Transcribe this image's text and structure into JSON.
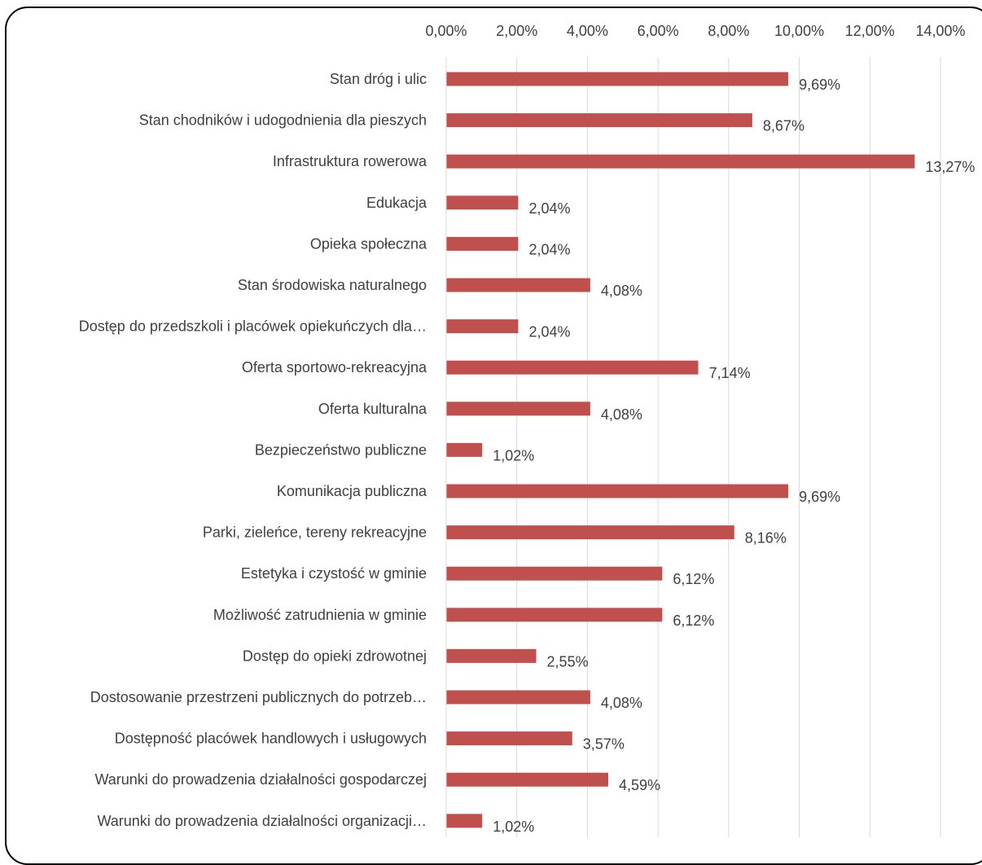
{
  "chart_data": {
    "type": "bar",
    "orientation": "horizontal",
    "title": "",
    "xlabel": "",
    "ylabel": "",
    "xlim": [
      0,
      14
    ],
    "x_ticks": [
      0,
      2,
      4,
      6,
      8,
      10,
      12,
      14
    ],
    "x_tick_labels": [
      "0,00%",
      "2,00%",
      "4,00%",
      "6,00%",
      "8,00%",
      "10,00%",
      "12,00%",
      "14,00%"
    ],
    "x_axis_position": "top",
    "grid": "vertical",
    "legend": "none",
    "bar_color": "#C0504D",
    "categories": [
      "Stan dróg i ulic",
      "Stan chodników i udogodnienia dla pieszych",
      "Infrastruktura rowerowa",
      "Edukacja",
      "Opieka społeczna",
      "Stan środowiska naturalnego",
      "Dostęp do przedszkoli i placówek opiekuńczych dla…",
      "Oferta sportowo-rekreacyjna",
      "Oferta kulturalna",
      "Bezpieczeństwo publiczne",
      "Komunikacja publiczna",
      "Parki, zieleńce, tereny rekreacyjne",
      "Estetyka i czystość w gminie",
      "Możliwość zatrudnienia w gminie",
      "Dostęp do opieki zdrowotnej",
      "Dostosowanie przestrzeni publicznych do potrzeb…",
      "Dostępność placówek handlowych i usługowych",
      "Warunki do prowadzenia działalności gospodarczej",
      "Warunki do prowadzenia działalności organizacji…"
    ],
    "values": [
      9.69,
      8.67,
      13.27,
      2.04,
      2.04,
      4.08,
      2.04,
      7.14,
      4.08,
      1.02,
      9.69,
      8.16,
      6.12,
      6.12,
      2.55,
      4.08,
      3.57,
      4.59,
      1.02
    ],
    "data_labels": [
      "9,69%",
      "8,67%",
      "13,27%",
      "2,04%",
      "2,04%",
      "4,08%",
      "2,04%",
      "7,14%",
      "4,08%",
      "1,02%",
      "9,69%",
      "8,16%",
      "6,12%",
      "6,12%",
      "2,55%",
      "4,08%",
      "3,57%",
      "4,59%",
      "1,02%"
    ]
  }
}
